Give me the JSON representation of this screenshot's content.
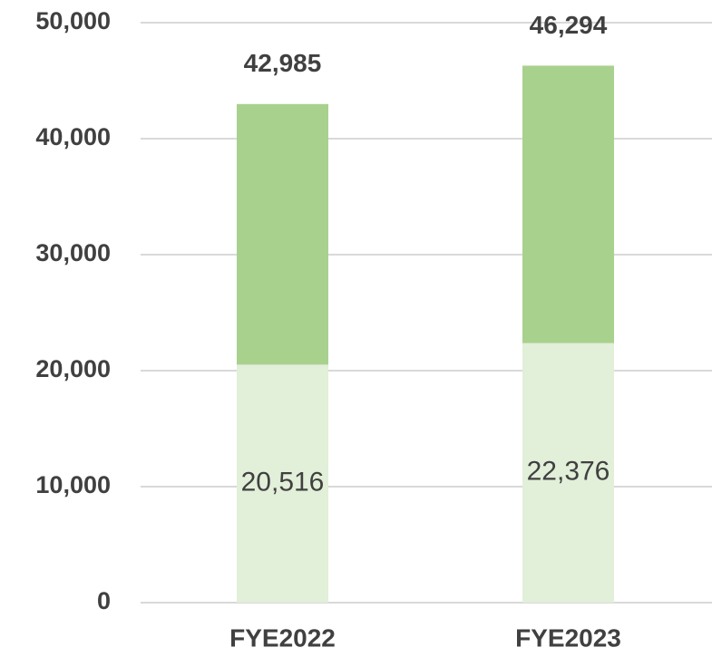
{
  "chart_data": {
    "type": "stacked_bar",
    "categories": [
      "FYE2022",
      "FYE2023"
    ],
    "series": [
      {
        "color": "#e2efd9",
        "values": [
          20516,
          22376
        ],
        "value_labels": [
          "20,516",
          "22,376"
        ]
      },
      {
        "color": "#a9d18e",
        "values": [
          22469,
          23918
        ]
      }
    ],
    "totals": {
      "values": [
        42985,
        46294
      ],
      "value_labels": [
        "42,985",
        "46,294"
      ]
    },
    "ylim": [
      0,
      50000
    ],
    "yticks": [
      0,
      {
        "value": 10000,
        "label": "10,000"
      },
      {
        "value": 20000,
        "label": "20,000"
      },
      {
        "value": 30000,
        "label": "30,000"
      },
      {
        "value": 40000,
        "label": "40,000"
      },
      {
        "value": 50000,
        "label": "50,000"
      }
    ],
    "grid": true
  }
}
